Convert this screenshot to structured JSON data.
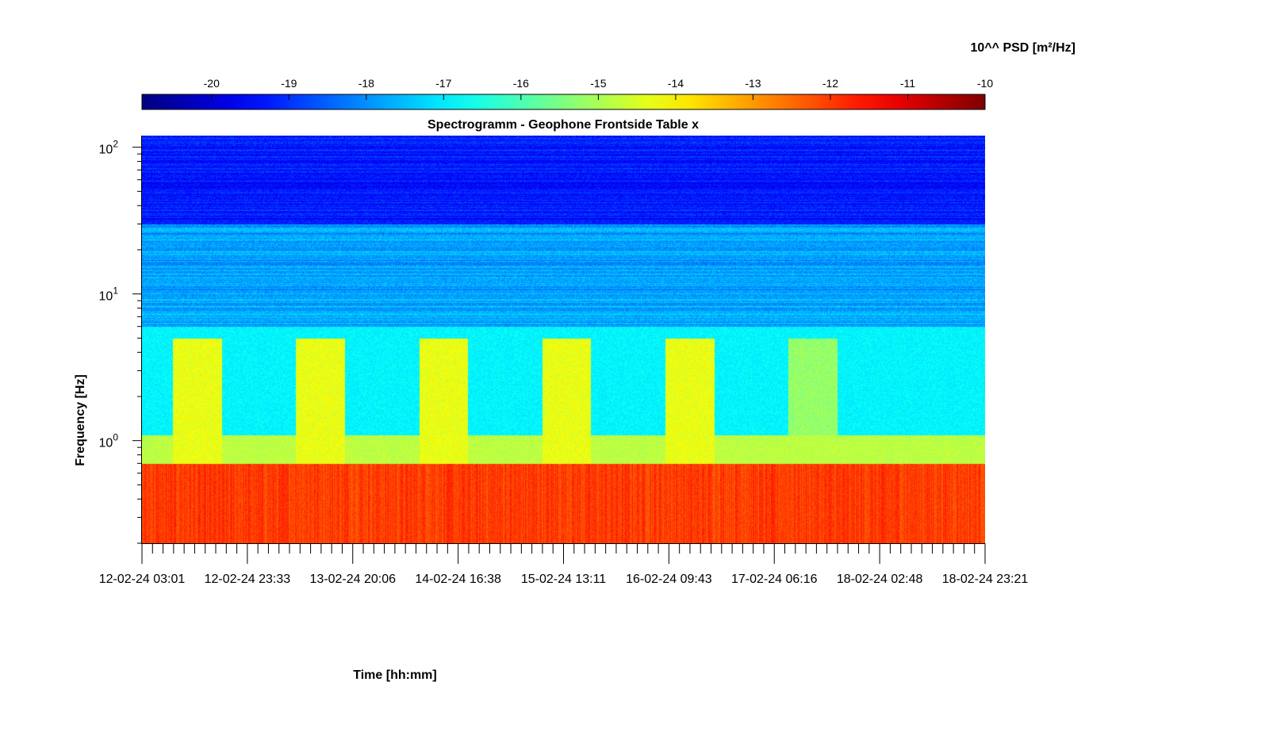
{
  "chart_data": {
    "type": "heatmap",
    "title": "Spectrogramm - Geophone Frontside Table x",
    "xlabel": "Time [hh:mm]",
    "ylabel": "Frequency [Hz]",
    "yscale": "log",
    "ylim": [
      0.2,
      120
    ],
    "y_ticks": [
      {
        "base": "10",
        "exp": "0",
        "value": 1
      },
      {
        "base": "10",
        "exp": "1",
        "value": 10
      },
      {
        "base": "10",
        "exp": "2",
        "value": 100
      }
    ],
    "x_tick_labels": [
      "12-02-24 03:01",
      "12-02-24 23:33",
      "13-02-24 20:06",
      "14-02-24 16:38",
      "15-02-24 13:11",
      "16-02-24 09:43",
      "17-02-24 06:16",
      "18-02-24 02:48",
      "18-02-24 23:21"
    ],
    "colorbar": {
      "title": "10^^ PSD [m²/Hz]",
      "ticks": [
        "-20",
        "-19",
        "-18",
        "-17",
        "-16",
        "-15",
        "-14",
        "-13",
        "-12",
        "-11",
        "-10"
      ],
      "range": [
        -20.9,
        -10
      ],
      "colormap": "jet",
      "location": "top"
    },
    "bands": [
      {
        "f_min": 30,
        "f_max": 120,
        "log_psd": -19.3
      },
      {
        "f_min": 6,
        "f_max": 30,
        "log_psd": -17.8
      },
      {
        "f_min": 1.1,
        "f_max": 6,
        "log_psd": -16.9
      },
      {
        "f_min": 0.7,
        "f_max": 1.1,
        "log_psd": -14.8
      },
      {
        "f_min": 0.2,
        "f_max": 0.7,
        "log_psd": -12.0
      }
    ],
    "activity_windows": [
      {
        "start": "12-02-24 09:00",
        "end": "12-02-24 18:30",
        "log_psd": -14.3
      },
      {
        "start": "13-02-24 09:00",
        "end": "13-02-24 18:30",
        "log_psd": -14.3
      },
      {
        "start": "14-02-24 09:00",
        "end": "14-02-24 18:30",
        "log_psd": -14.3
      },
      {
        "start": "15-02-24 09:00",
        "end": "15-02-24 18:30",
        "log_psd": -14.3
      },
      {
        "start": "16-02-24 09:00",
        "end": "16-02-24 18:30",
        "log_psd": -14.3
      },
      {
        "start": "17-02-24 09:00",
        "end": "17-02-24 18:30",
        "log_psd": -15.2
      }
    ],
    "colors": {
      "background": "#ffffff",
      "axis": "#000000"
    }
  }
}
